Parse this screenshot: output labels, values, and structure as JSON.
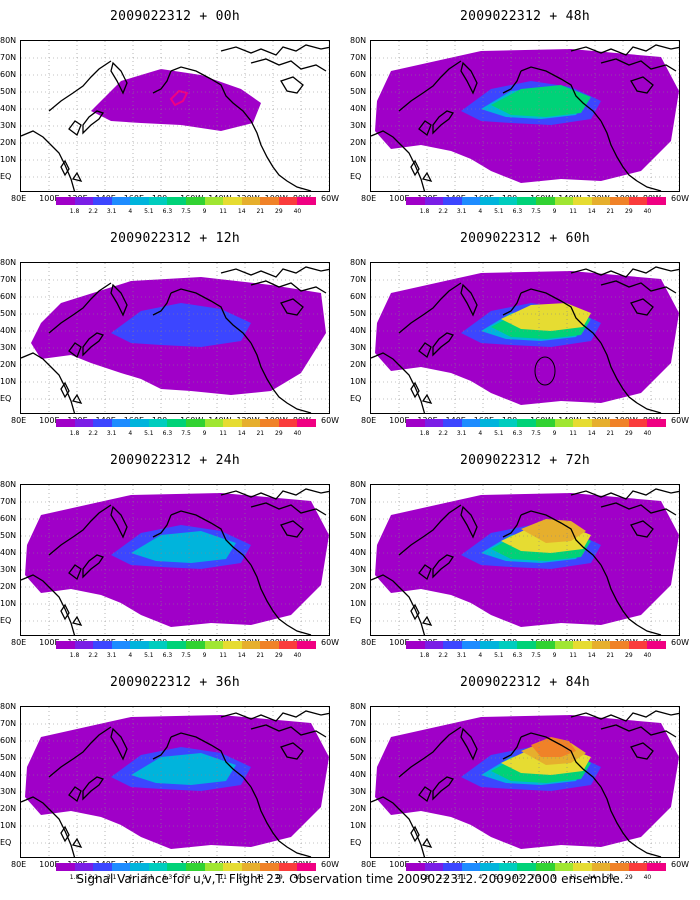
{
  "panels": [
    {
      "title": "2009022312 + 00h",
      "intensity": 0
    },
    {
      "title": "2009022312 + 48h",
      "intensity": 3
    },
    {
      "title": "2009022312 + 12h",
      "intensity": 1
    },
    {
      "title": "2009022312 + 60h",
      "intensity": 4,
      "marker": "circle"
    },
    {
      "title": "2009022312 + 24h",
      "intensity": 2
    },
    {
      "title": "2009022312 + 72h",
      "intensity": 5
    },
    {
      "title": "2009022312 + 36h",
      "intensity": 2
    },
    {
      "title": "2009022312 + 84h",
      "intensity": 6
    }
  ],
  "lat_labels": [
    "80N",
    "70N",
    "60N",
    "50N",
    "40N",
    "30N",
    "20N",
    "10N",
    "EQ"
  ],
  "lon_labels": [
    "80E",
    "100E",
    "120E",
    "140E",
    "160E",
    "180",
    "160W",
    "140W",
    "120W",
    "100W",
    "80W",
    "60W"
  ],
  "colorbar": {
    "labels": [
      "1.8",
      "2.2",
      "3.1",
      "4",
      "5.1",
      "6.3",
      "7.5",
      "9",
      "11",
      "14",
      "21",
      "29",
      "40"
    ],
    "colors": [
      "#a000c8",
      "#7a1ee6",
      "#3c46ff",
      "#1e8cff",
      "#00b4dc",
      "#00cdbe",
      "#00d278",
      "#32d232",
      "#a0e632",
      "#e6dc32",
      "#e6af2d",
      "#f08228",
      "#fa3c3c",
      "#f00082"
    ]
  },
  "caption": "Signal Variance for u,v,T. Flight 23. Observation time 2009022312. 2009022000 ensemble."
}
